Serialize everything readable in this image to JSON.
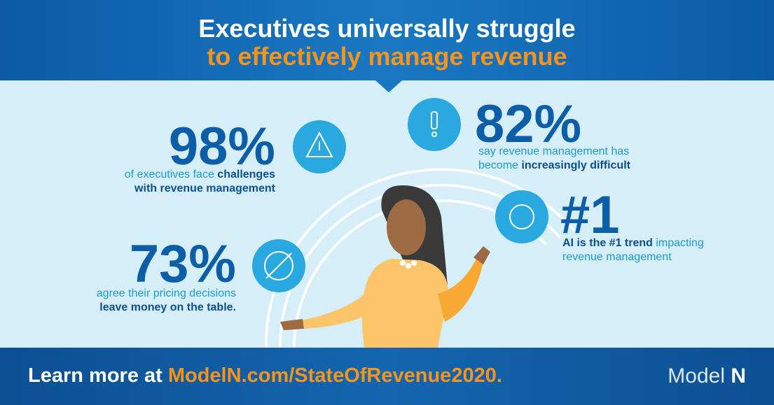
{
  "header": {
    "title_line1": "Executives universally struggle",
    "title_line2": "to effectively manage revenue"
  },
  "stats": [
    {
      "figure": "98%",
      "text": [
        "of executives face ",
        "challenges with revenue management"
      ]
    },
    {
      "figure": "82%",
      "text": [
        "say revenue management has become ",
        "increasingly difficult"
      ]
    },
    {
      "figure": "#1",
      "text": [
        "AI is the #1 trend",
        " impacting revenue management"
      ]
    },
    {
      "figure": "73%",
      "text": [
        "agree their pricing decisions ",
        "leave money on the table."
      ]
    }
  ],
  "footer": {
    "prefix": "Learn more at ",
    "link": "ModelN.com/StateOfRevenue2020.",
    "logo": [
      "Model ",
      "N"
    ]
  }
}
